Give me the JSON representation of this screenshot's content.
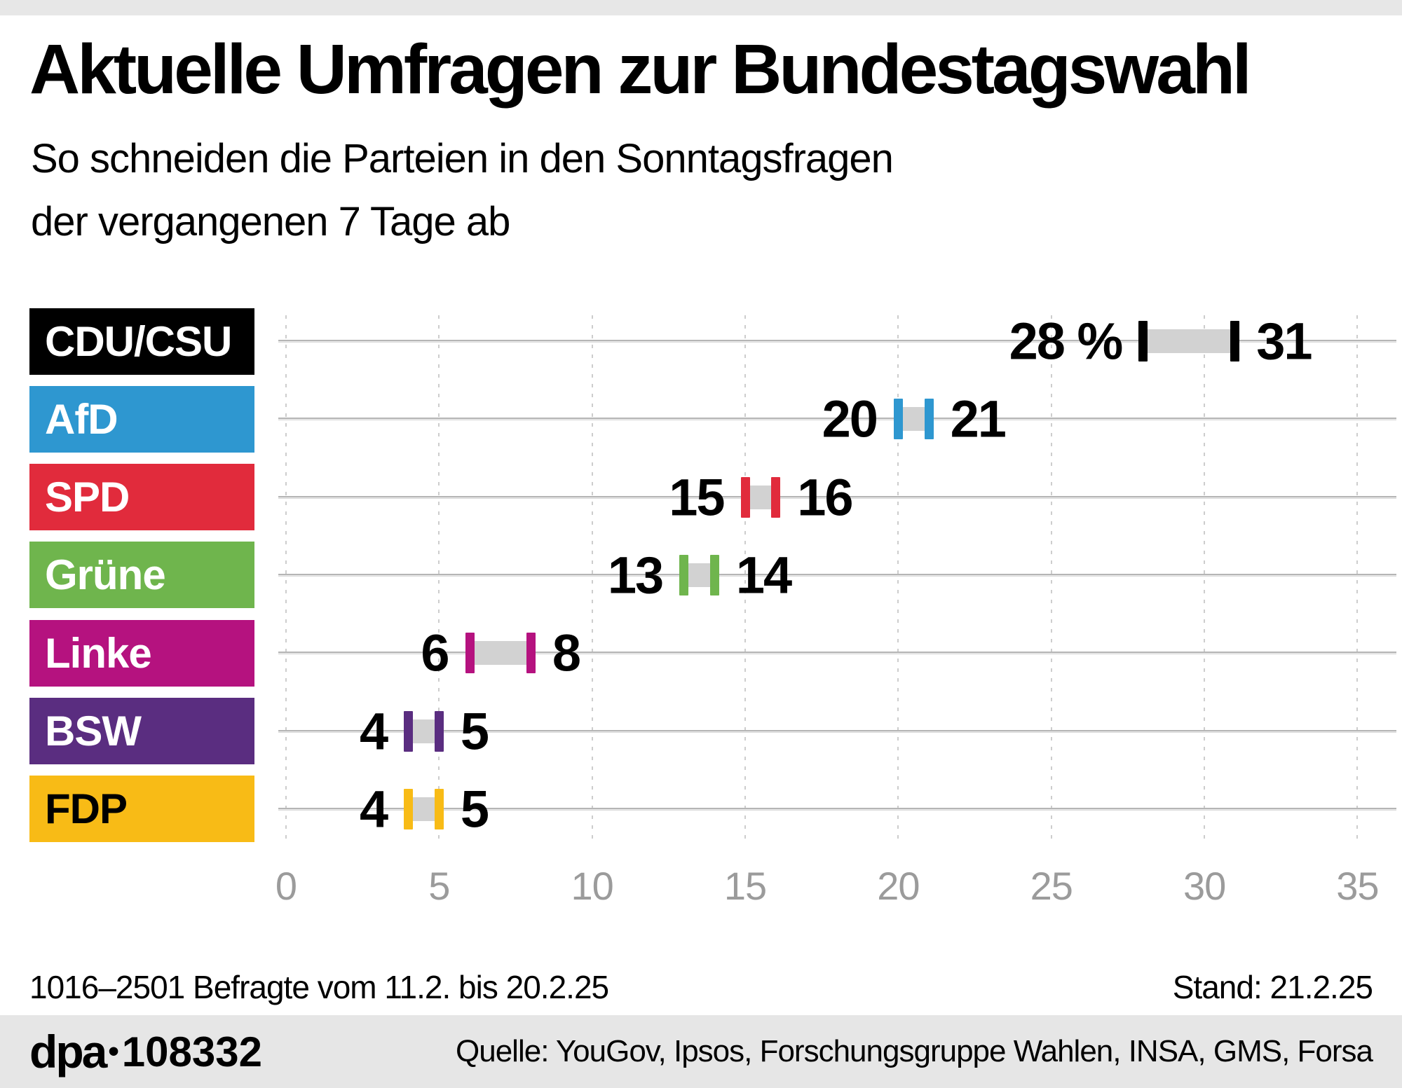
{
  "chart_data": {
    "type": "range-bar",
    "title": "Aktuelle Umfragen zur Bundestagswahl",
    "subtitle_line1": "So schneiden die Parteien in den Sonntagsfragen",
    "subtitle_line2": "der vergangenen 7 Tage ab",
    "x_range": [
      0,
      35
    ],
    "x_ticks": [
      "0",
      "5",
      "10",
      "15",
      "20",
      "25",
      "30",
      "35"
    ],
    "x_tick_values": [
      0,
      5,
      10,
      15,
      20,
      25,
      30,
      35
    ],
    "unit": "%",
    "grid": "vertical-dashed",
    "legend_position": "left-row-labels",
    "bar_color": "#d2d2d2",
    "grid_color": "#cdcdcd",
    "row_line_color": "#b5b5b5",
    "tick_label_color": "#9b9b9b",
    "series": [
      {
        "party": "CDU/CSU",
        "slug": "cdu-csu",
        "color": "#000000",
        "label_text_color": "#ffffff",
        "min": 28,
        "max": 31,
        "min_label": "28 %",
        "max_label": "31"
      },
      {
        "party": "AfD",
        "slug": "afd",
        "color": "#2e97d0",
        "label_text_color": "#ffffff",
        "min": 20,
        "max": 21,
        "min_label": "20",
        "max_label": "21"
      },
      {
        "party": "SPD",
        "slug": "spd",
        "color": "#e12b3c",
        "label_text_color": "#ffffff",
        "min": 15,
        "max": 16,
        "min_label": "15",
        "max_label": "16"
      },
      {
        "party": "Grüne",
        "slug": "gruene",
        "color": "#6fb54d",
        "label_text_color": "#ffffff",
        "min": 13,
        "max": 14,
        "min_label": "13",
        "max_label": "14"
      },
      {
        "party": "Linke",
        "slug": "linke",
        "color": "#b5127f",
        "label_text_color": "#ffffff",
        "min": 6,
        "max": 8,
        "min_label": "6",
        "max_label": "8"
      },
      {
        "party": "BSW",
        "slug": "bsw",
        "color": "#5a2d80",
        "label_text_color": "#ffffff",
        "min": 4,
        "max": 5,
        "min_label": "4",
        "max_label": "5"
      },
      {
        "party": "FDP",
        "slug": "fdp",
        "color": "#f8bb16",
        "label_text_color": "#000000",
        "min": 4,
        "max": 5,
        "min_label": "4",
        "max_label": "5"
      }
    ]
  },
  "footer": {
    "sample_note": "1016–2501 Befragte vom 11.2. bis 20.2.25",
    "stand": "Stand: 21.2.25",
    "dpa_logo": "dpa",
    "dpa_bullet": "•",
    "graphic_id": "108332",
    "source": "Quelle: YouGov, Ipsos, Forschungsgruppe Wahlen, INSA, GMS, Forsa"
  }
}
